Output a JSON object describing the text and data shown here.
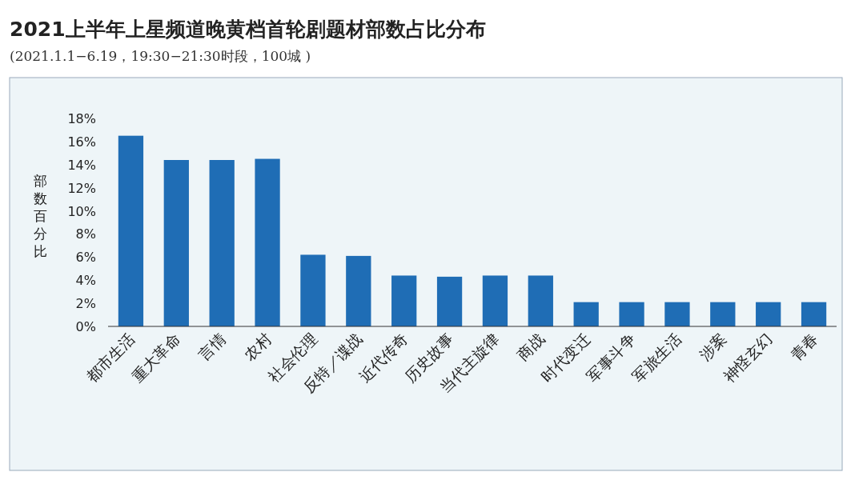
{
  "chart_data": {
    "type": "bar",
    "title": "2021上半年上星频道晚黄档首轮剧题材部数占比分布",
    "subtitle": "(2021.1.1−6.19，19:30−21:30时段，100城 )",
    "ylabel": "部数百分比",
    "categories": [
      "都市生活",
      "重大革命",
      "言情",
      "农村",
      "社会伦理",
      "反特／谍战",
      "近代传奇",
      "历史故事",
      "当代主旋律",
      "商战",
      "时代变迁",
      "军事斗争",
      "军旅生活",
      "涉案",
      "神怪玄幻",
      "青春"
    ],
    "values": [
      16.5,
      14.4,
      14.4,
      14.5,
      6.2,
      6.1,
      4.4,
      4.3,
      4.4,
      4.4,
      2.1,
      2.1,
      2.1,
      2.1,
      2.1,
      2.1
    ],
    "color": "#1f6db5",
    "ylim": [
      0,
      18
    ],
    "yticks": [
      {
        "value": 0,
        "label": "0%"
      },
      {
        "value": 2,
        "label": "2%"
      },
      {
        "value": 4,
        "label": "4%"
      },
      {
        "value": 6,
        "label": "6%"
      },
      {
        "value": 8,
        "label": "8%"
      },
      {
        "value": 10,
        "label": "10%"
      },
      {
        "value": 12,
        "label": "12%"
      },
      {
        "value": 14,
        "label": "14%"
      },
      {
        "value": 16,
        "label": "16%"
      },
      {
        "value": 18,
        "label": "18%"
      }
    ]
  }
}
